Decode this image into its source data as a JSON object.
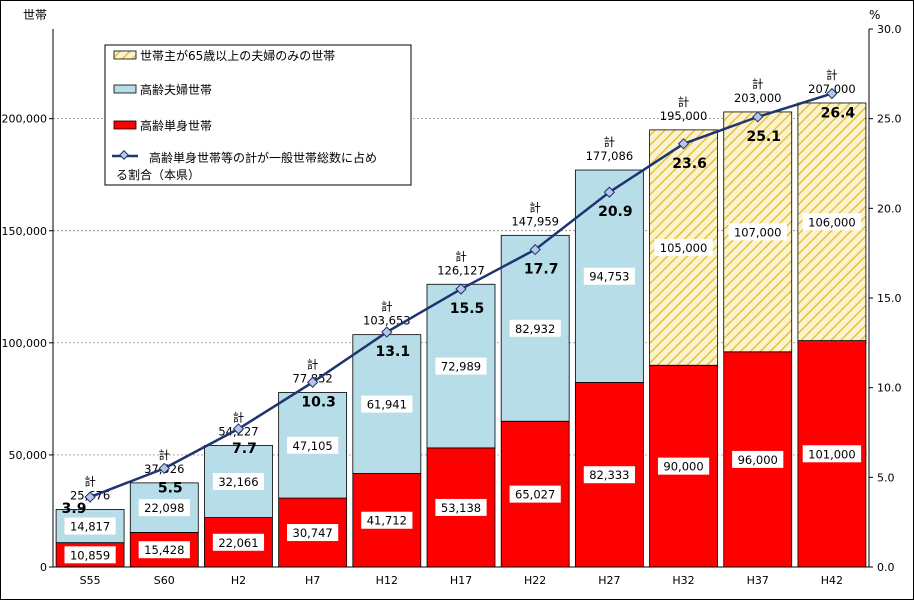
{
  "chart_data": {
    "type": "bar",
    "stacked": true,
    "categories": [
      "S55",
      "S60",
      "H2",
      "H7",
      "H12",
      "H17",
      "H22",
      "H27",
      "H32",
      "H37",
      "H42"
    ],
    "series": [
      {
        "name": "高齢単身世帯",
        "values": [
          10859,
          15428,
          22061,
          30747,
          41712,
          53138,
          65027,
          82333,
          90000,
          96000,
          101000
        ],
        "value_labels": [
          "10,859",
          "15,428",
          "22,061",
          "30,747",
          "41,712",
          "53,138",
          "65,027",
          "82,333",
          "90,000",
          "96,000",
          "101,000"
        ]
      },
      {
        "name": "高齢夫婦世帯",
        "values": [
          14817,
          22098,
          32166,
          47105,
          61941,
          72989,
          82932,
          94753,
          null,
          null,
          null
        ],
        "value_labels": [
          "14,817",
          "22,098",
          "32,166",
          "47,105",
          "61,941",
          "72,989",
          "82,932",
          "94,753",
          "",
          "",
          ""
        ]
      },
      {
        "name": "世帯主が65歳以上の夫婦のみの世帯",
        "values": [
          null,
          null,
          null,
          null,
          null,
          null,
          null,
          null,
          105000,
          107000,
          106000
        ],
        "value_labels": [
          "",
          "",
          "",
          "",
          "",
          "",
          "",
          "",
          "105,000",
          "107,000",
          "106,000"
        ]
      }
    ],
    "totals": [
      25676,
      37526,
      54227,
      77852,
      103653,
      126127,
      147959,
      177086,
      195000,
      203000,
      207000
    ],
    "total_labels": [
      "25,676",
      "37,526",
      "54,227",
      "77,852",
      "103,653",
      "126,127",
      "147,959",
      "177,086",
      "195,000",
      "203,000",
      "207,000"
    ],
    "total_prefix": "計",
    "line_series": {
      "name": "高齢単身世帯等の計が一般世帯総数に占める割合（本県）",
      "values": [
        3.9,
        5.5,
        7.7,
        10.3,
        13.1,
        15.5,
        17.7,
        20.9,
        23.6,
        25.1,
        26.4
      ],
      "value_labels": [
        "3.9",
        "5.5",
        "7.7",
        "10.3",
        "13.1",
        "15.5",
        "17.7",
        "20.9",
        "23.6",
        "25.1",
        "26.4"
      ]
    },
    "y_left": {
      "label": "世帯",
      "lim": [
        0,
        240000
      ],
      "ticks": [
        0,
        50000,
        100000,
        150000,
        200000
      ],
      "tick_labels": [
        "0",
        "50,000",
        "100,000",
        "150,000",
        "200,000"
      ]
    },
    "y_right": {
      "label": "%",
      "lim": [
        0,
        30
      ],
      "ticks": [
        0,
        5,
        10,
        15,
        20,
        25,
        30
      ],
      "tick_labels": [
        "0.0",
        "5.0",
        "10.0",
        "15.0",
        "20.0",
        "25.0",
        "30.0"
      ]
    },
    "grid": true,
    "legend_position": "top-left",
    "colors": {
      "single": "#ff0000",
      "couple": "#b7dde8",
      "projection_hatch": "#e8c84a",
      "line": "#1f3470",
      "marker": "#b7c6e6"
    }
  },
  "legend": {
    "items": [
      {
        "key": "hatch",
        "label": "世帯主が65歳以上の夫婦のみの世帯"
      },
      {
        "key": "couple",
        "label": "高齢夫婦世帯"
      },
      {
        "key": "single",
        "label": "高齢単身世帯"
      }
    ],
    "line_label_1": "高齢単身世帯等の計が一般世帯総数に占め",
    "line_label_2": "る割合（本県）"
  }
}
